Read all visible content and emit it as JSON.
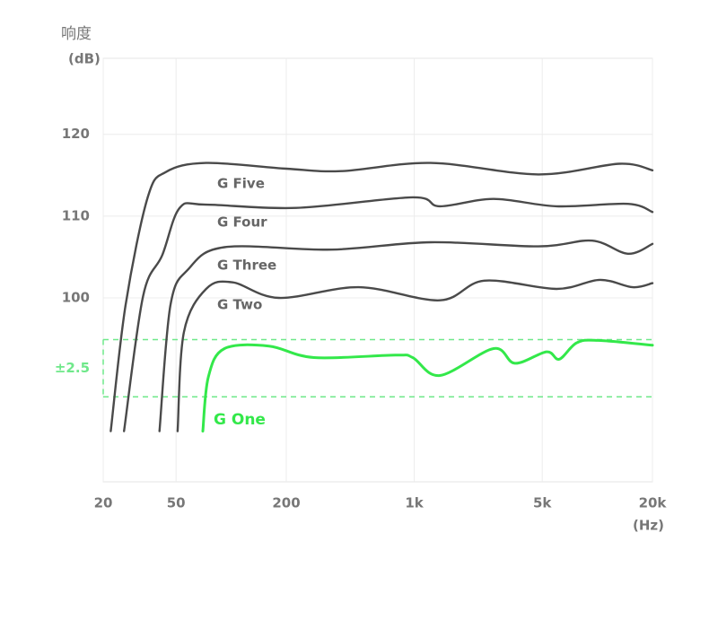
{
  "chart_data": {
    "type": "line",
    "y_title": "响度",
    "y_unit": "(dB)",
    "x_unit": "(Hz)",
    "log_x": true,
    "grid": true,
    "xlim": [
      20,
      20000
    ],
    "ylim": [
      77.5,
      129.3
    ],
    "xticks": [
      20,
      50,
      200,
      {
        "value": 1000,
        "label": "1k"
      },
      {
        "value": 5000,
        "label": "5k"
      },
      {
        "value": 20000,
        "label": "20k"
      }
    ],
    "yticks": [
      100,
      110,
      120
    ],
    "band": {
      "label": "±2.5",
      "low": 87.9,
      "high": 94.9,
      "color": "#6fe88a"
    },
    "series": [
      {
        "name": "G Five",
        "color": "#4a4a4a",
        "x": [
          22,
          26.5,
          35,
          44,
          73,
          200,
          400,
          1230,
          4770,
          13200,
          20000
        ],
        "values": [
          83.7,
          99.1,
          112.3,
          115.4,
          116.5,
          115.8,
          115.5,
          116.5,
          115.1,
          116.4,
          115.6
        ]
      },
      {
        "name": "G Four",
        "color": "#4a4a4a",
        "x": [
          26,
          33,
          42,
          52.3,
          73,
          227,
          980,
          1380,
          2710,
          6000,
          14700,
          20000
        ],
        "values": [
          83.7,
          100.2,
          105.2,
          111,
          111.4,
          111,
          112.3,
          111.2,
          112.1,
          111.2,
          111.5,
          110.5
        ]
      },
      {
        "name": "G Three",
        "color": "#4a4a4a",
        "x": [
          40.6,
          46.6,
          58.3,
          91.9,
          355,
          1230,
          4770,
          9380,
          14700,
          20000
        ],
        "values": [
          83.7,
          99.1,
          103.5,
          106.2,
          105.9,
          106.8,
          106.3,
          107,
          105.4,
          106.6
        ]
      },
      {
        "name": "G Two",
        "color": "#4a4a4a",
        "x": [
          51,
          55.2,
          73,
          102,
          182,
          498,
          1380,
          2410,
          6000,
          10300,
          15600,
          20000
        ],
        "values": [
          83.7,
          95.8,
          101.1,
          101.9,
          100,
          101.3,
          99.7,
          102.1,
          101.1,
          102.2,
          101.3,
          101.8
        ]
      },
      {
        "name": "G One",
        "color": "#33e84a",
        "x": [
          70,
          75,
          91.9,
          161,
          283,
          787,
          980,
          1380,
          2710,
          3550,
          5280,
          6200,
          7710,
          10100,
          20000
        ],
        "values": [
          83.7,
          90.3,
          93.8,
          94.1,
          92.7,
          93,
          92.7,
          90.5,
          93.8,
          92,
          93.4,
          92.5,
          94.5,
          94.8,
          94.2
        ]
      }
    ]
  }
}
